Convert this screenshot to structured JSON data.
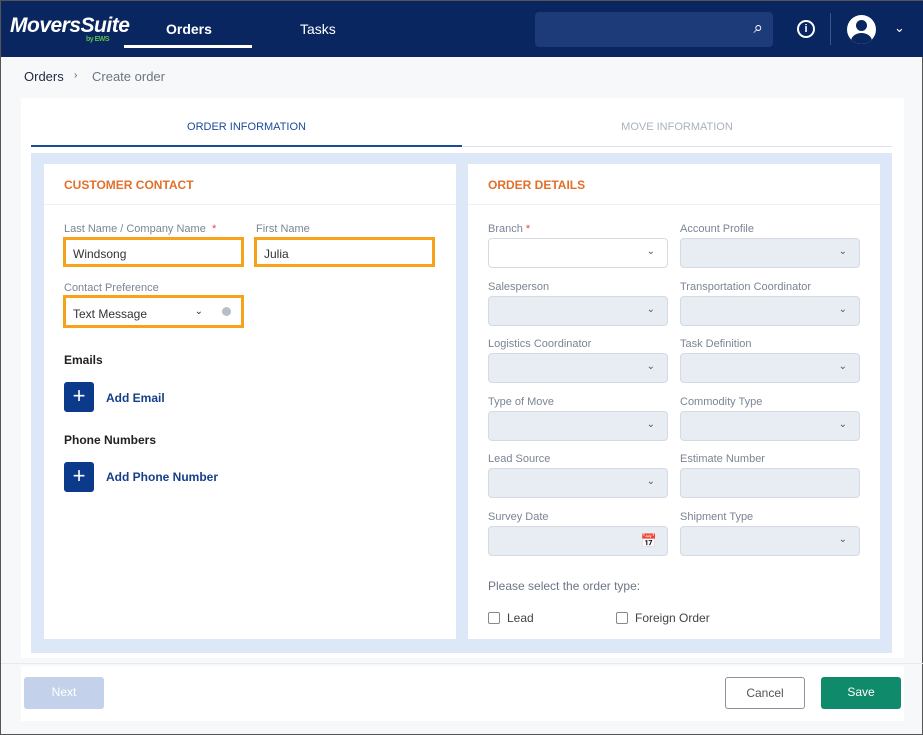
{
  "header": {
    "logo": "MoversSuite",
    "logo_sub": "by EWS",
    "nav": [
      "Orders",
      "Tasks"
    ]
  },
  "breadcrumb": {
    "root": "Orders",
    "current": "Create order"
  },
  "tabs": [
    "ORDER INFORMATION",
    "MOVE INFORMATION"
  ],
  "customer_contact": {
    "title": "CUSTOMER CONTACT",
    "last_name_label": "Last Name / Company Name",
    "last_name": "Windsong",
    "first_name_label": "First Name",
    "first_name": "Julia",
    "contact_pref_label": "Contact Preference",
    "contact_pref": "Text Message",
    "emails": "Emails",
    "add_email": "Add Email",
    "phones": "Phone Numbers",
    "add_phone": "Add Phone Number"
  },
  "order_details": {
    "title": "ORDER DETAILS",
    "fields": [
      {
        "label": "Branch",
        "required": "*"
      },
      {
        "label": "Account Profile"
      },
      {
        "label": "Salesperson"
      },
      {
        "label": "Transportation Coordinator"
      },
      {
        "label": "Logistics Coordinator"
      },
      {
        "label": "Task Definition"
      },
      {
        "label": "Type of Move"
      },
      {
        "label": "Commodity Type"
      },
      {
        "label": "Lead Source"
      },
      {
        "label": "Estimate Number"
      },
      {
        "label": "Survey Date"
      },
      {
        "label": "Shipment Type"
      }
    ],
    "order_type_prompt": "Please select the order type:",
    "lead": "Lead",
    "foreign": "Foreign Order"
  },
  "footer": {
    "next": "Next",
    "cancel": "Cancel",
    "save": "Save"
  },
  "colors": {
    "navy": "#0a2660",
    "accent_orange": "#e0702a",
    "highlight": "#f7a21b",
    "save": "#0f8a6a"
  }
}
